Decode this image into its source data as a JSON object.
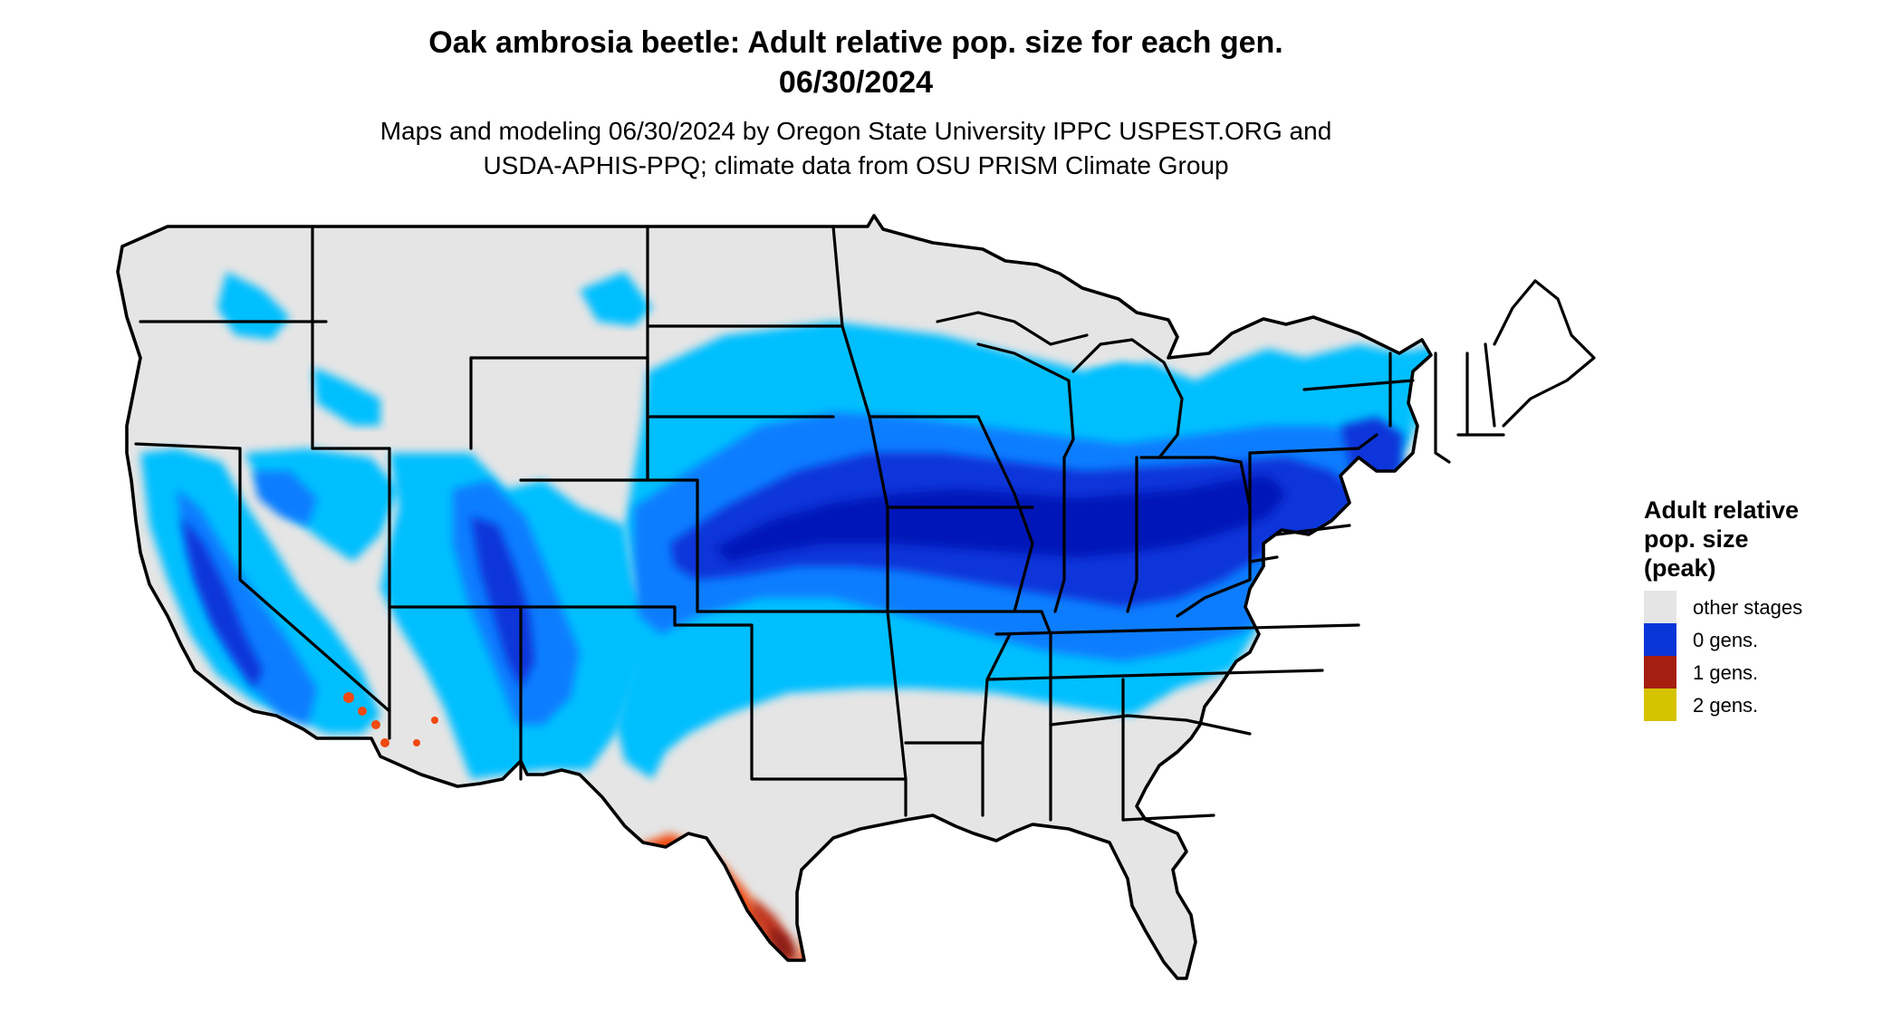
{
  "title": {
    "line1": "Oak ambrosia beetle: Adult relative pop. size for each gen.",
    "line2": "06/30/2024"
  },
  "subtitle": {
    "line1": "Maps and modeling 06/30/2024 by Oregon State University IPPC USPEST.ORG and",
    "line2": "USDA-APHIS-PPQ; climate data from OSU PRISM Climate Group"
  },
  "legend": {
    "title_lines": [
      "Adult relative",
      "pop. size",
      "(peak)"
    ],
    "items": [
      {
        "label": "other stages",
        "color": "#e5e5e5"
      },
      {
        "label": "0 gens.",
        "color": "#0a36d9"
      },
      {
        "label": "1 gens.",
        "color": "#a51e10"
      },
      {
        "label": "2 gens.",
        "color": "#d6c300"
      }
    ]
  },
  "colors": {
    "background": "#ffffff",
    "land": "#e5e5e5",
    "light_blue": "#00bfff",
    "mid_blue": "#0a7dff",
    "dark_blue": "#0a36d9",
    "deep_blue": "#0414b8",
    "orange": "#f04a10",
    "red": "#c0361c",
    "dark_red": "#8a1a12",
    "state_lines": "#000000"
  }
}
